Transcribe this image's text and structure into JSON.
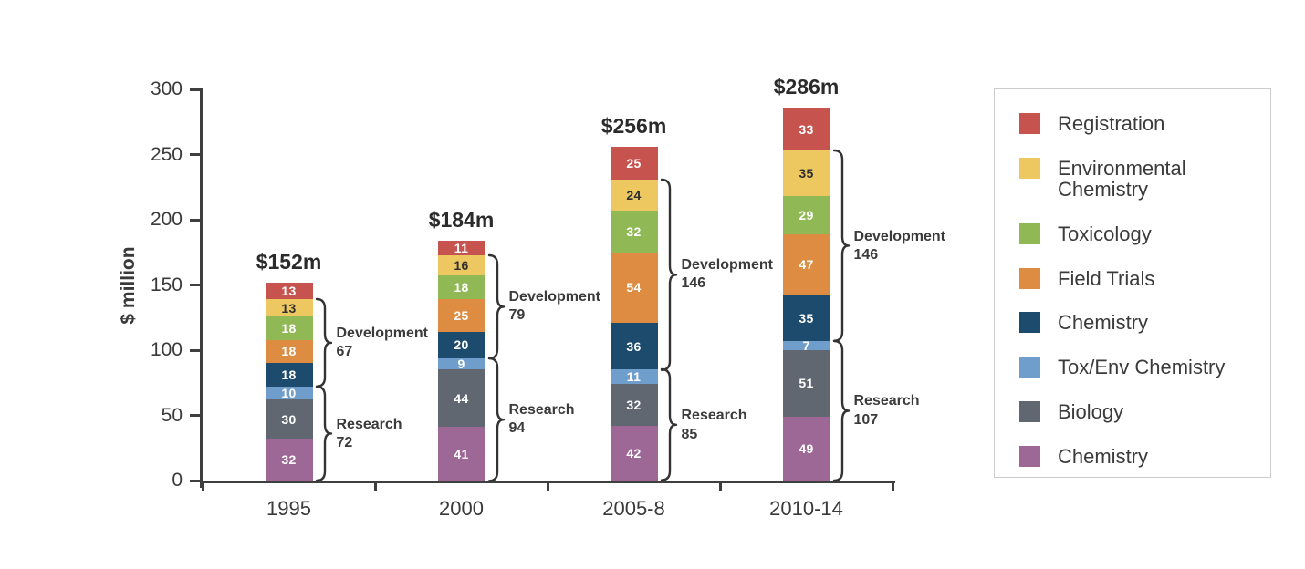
{
  "chart_data": {
    "type": "bar",
    "stacked": true,
    "title": "",
    "ylabel": "$ million",
    "xlabel": "",
    "ylim": [
      0,
      300
    ],
    "yticks": [
      0,
      50,
      100,
      150,
      200,
      250,
      300
    ],
    "grid": false,
    "legend_position": "right",
    "categories": [
      "1995",
      "2000",
      "2005-8",
      "2010-14"
    ],
    "totals": [
      "$152m",
      "$184m",
      "$256m",
      "$286m"
    ],
    "series": [
      {
        "name": "Chemistry (Research)",
        "color": "#9e6896",
        "label_color": "#ffffff",
        "values": [
          32,
          41,
          42,
          49
        ]
      },
      {
        "name": "Biology",
        "color": "#606771",
        "label_color": "#ffffff",
        "values": [
          30,
          44,
          32,
          51
        ]
      },
      {
        "name": "Tox/Env Chemistry",
        "color": "#6f9ecd",
        "label_color": "#ffffff",
        "values": [
          10,
          9,
          11,
          7
        ]
      },
      {
        "name": "Chemistry (Development)",
        "color": "#1d4b6e",
        "label_color": "#ffffff",
        "values": [
          18,
          20,
          36,
          35
        ]
      },
      {
        "name": "Field Trials",
        "color": "#dd8c41",
        "label_color": "#ffffff",
        "values": [
          18,
          25,
          54,
          47
        ]
      },
      {
        "name": "Toxicology",
        "color": "#90b956",
        "label_color": "#ffffff",
        "values": [
          18,
          18,
          32,
          29
        ]
      },
      {
        "name": "Environmental Chemistry",
        "color": "#edc75f",
        "label_color": "#2f2f2f",
        "values": [
          13,
          16,
          24,
          35
        ]
      },
      {
        "name": "Registration",
        "color": "#c6534e",
        "label_color": "#ffffff",
        "values": [
          13,
          11,
          25,
          33
        ]
      }
    ],
    "brackets": [
      {
        "group": "Development",
        "series_span": [
          3,
          6
        ],
        "values": [
          67,
          79,
          146,
          146
        ]
      },
      {
        "group": "Research",
        "series_span": [
          0,
          2
        ],
        "values": [
          72,
          94,
          85,
          107
        ]
      }
    ],
    "legend": [
      {
        "label": "Registration",
        "color": "#c6534e"
      },
      {
        "label": "Environmental Chemistry",
        "color": "#edc75f"
      },
      {
        "label": "Toxicology",
        "color": "#90b956"
      },
      {
        "label": "Field Trials",
        "color": "#dd8c41"
      },
      {
        "label": "Chemistry",
        "color": "#1d4b6e"
      },
      {
        "label": "Tox/Env Chemistry",
        "color": "#6f9ecd"
      },
      {
        "label": "Biology",
        "color": "#606771"
      },
      {
        "label": "Chemistry",
        "color": "#9e6896"
      }
    ]
  },
  "colors": {
    "background": "#ffffff",
    "axis": "#3f3f3f",
    "text": "#3a3a3a",
    "brace": "#333333",
    "legend_border": "#cccccc"
  }
}
